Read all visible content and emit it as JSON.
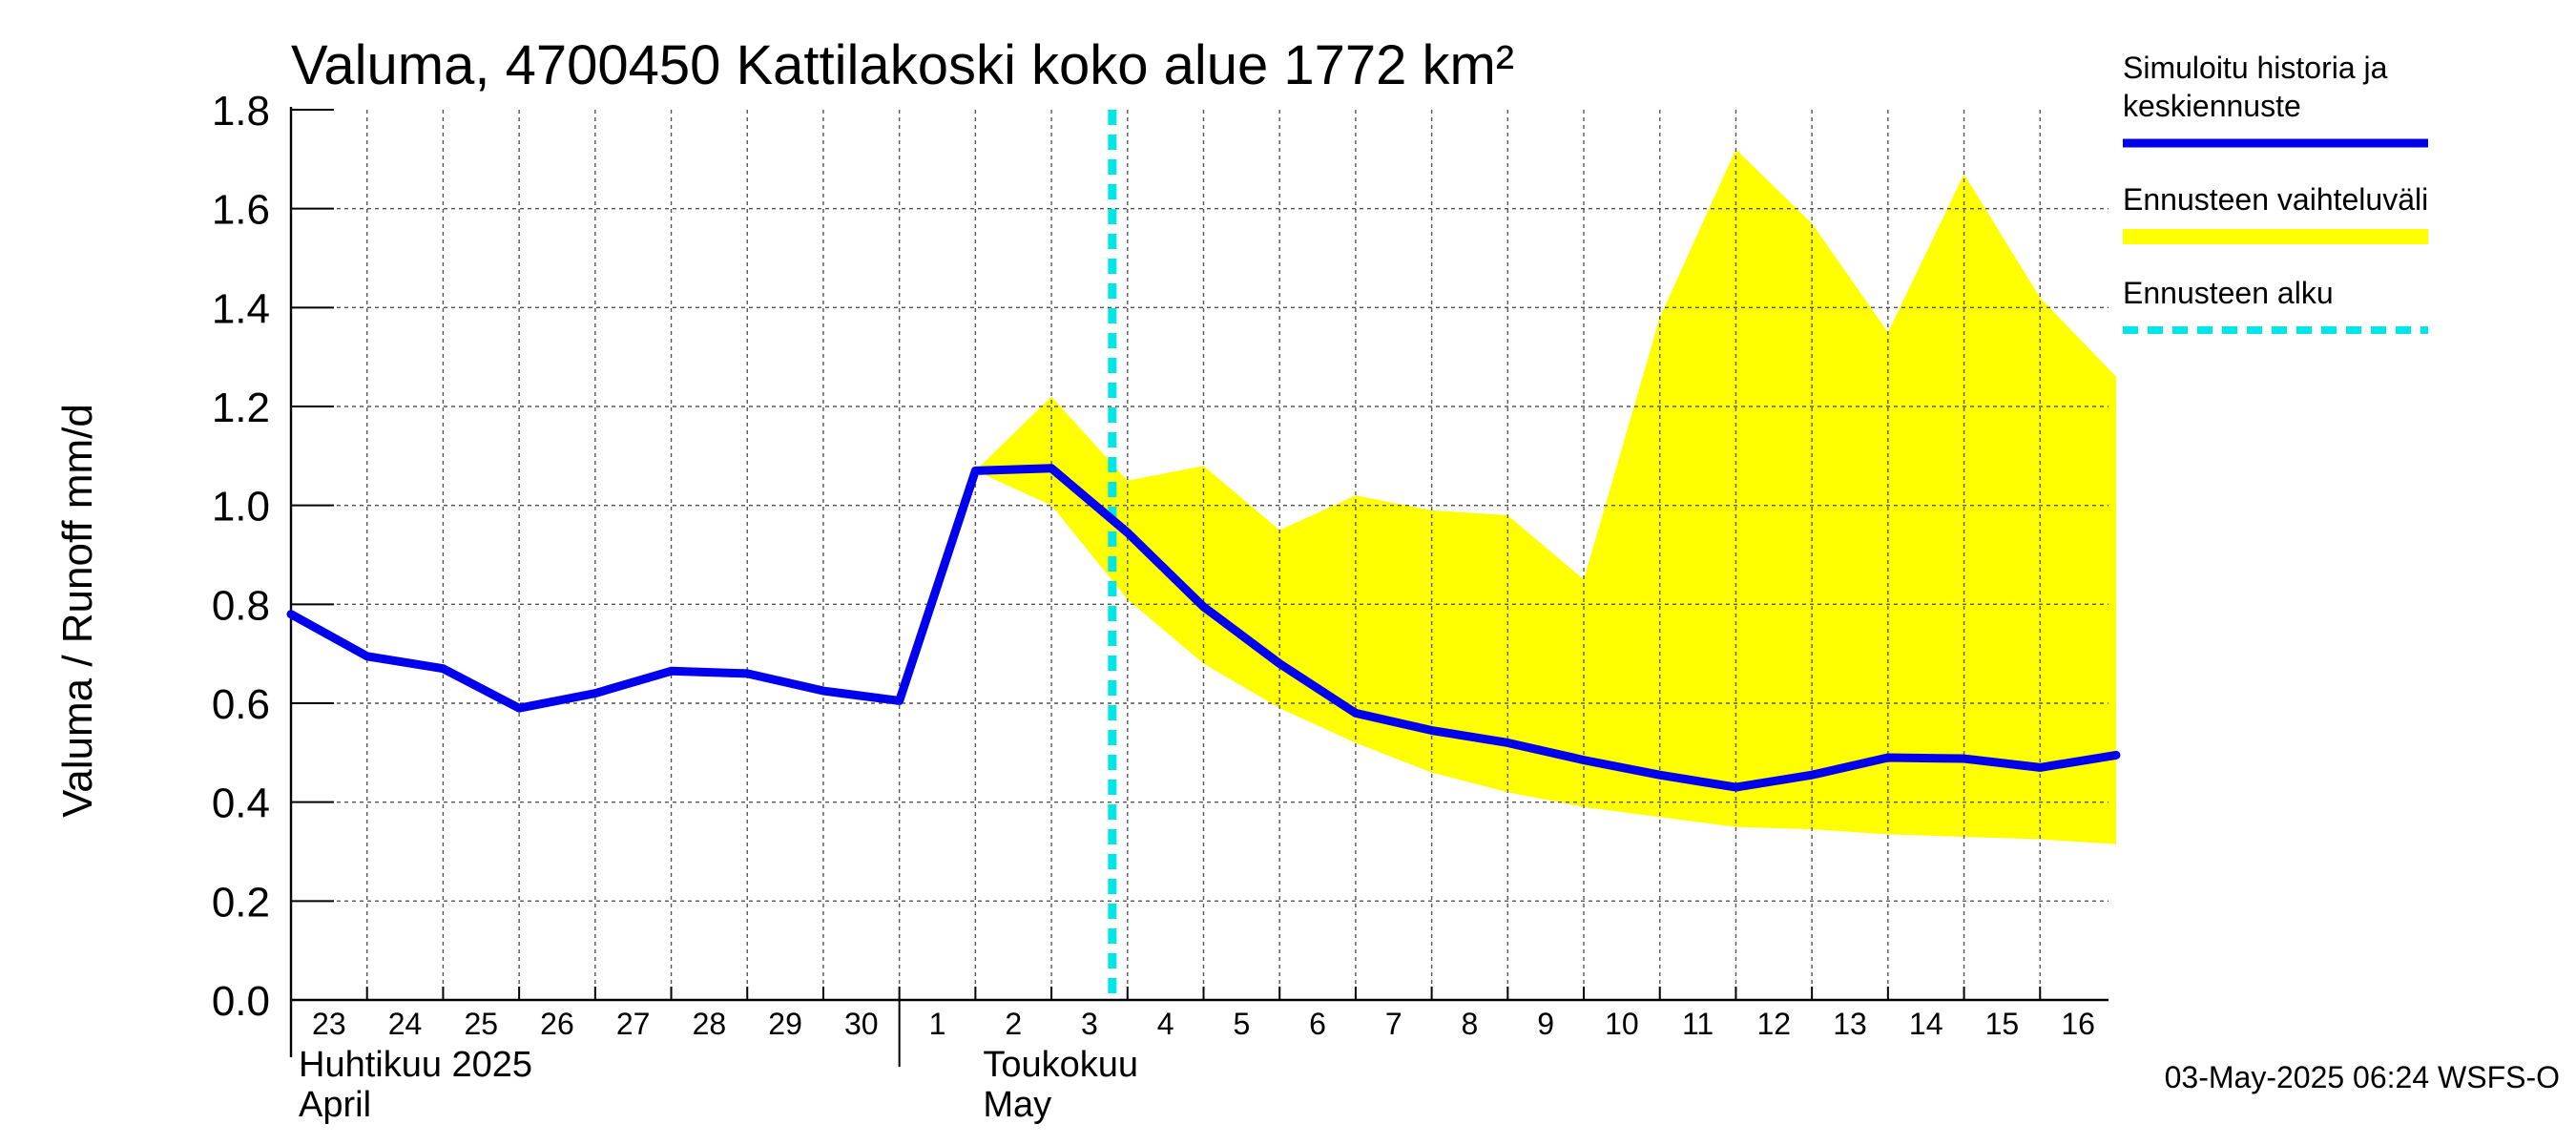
{
  "chart_data": {
    "type": "line",
    "title": "Valuma, 4700450 Kattilakoski koko alue 1772 km²",
    "ylabel": "Valuma / Runoff     mm/d",
    "ylim": [
      0,
      1.8
    ],
    "yticks": [
      "0.0",
      "0.2",
      "0.4",
      "0.6",
      "0.8",
      "1.0",
      "1.2",
      "1.4",
      "1.6",
      "1.8"
    ],
    "xtick_labels": [
      "23",
      "24",
      "25",
      "26",
      "27",
      "28",
      "29",
      "30",
      "1",
      "2",
      "3",
      "4",
      "5",
      "6",
      "7",
      "8",
      "9",
      "10",
      "11",
      "12",
      "13",
      "14",
      "15",
      "16"
    ],
    "month_labels": [
      {
        "line1": "Huhtikuu  2025",
        "line2": "April"
      },
      {
        "line1": "Toukokuu",
        "line2": "May"
      }
    ],
    "forecast_start_day": 10.8,
    "series": [
      {
        "name": "Simuloitu historia ja keskiennuste",
        "color": "#0000ee",
        "x": [
          0,
          1,
          2,
          3,
          4,
          5,
          6,
          7,
          8,
          9,
          10,
          11,
          12,
          13,
          14,
          15,
          16,
          17,
          18,
          19,
          20,
          21,
          22,
          23,
          24
        ],
        "values": [
          0.78,
          0.695,
          0.67,
          0.59,
          0.62,
          0.665,
          0.66,
          0.625,
          0.605,
          1.07,
          1.075,
          0.945,
          0.795,
          0.68,
          0.58,
          0.545,
          0.52,
          0.485,
          0.455,
          0.43,
          0.455,
          0.49,
          0.488,
          0.47,
          0.495
        ]
      }
    ],
    "range": {
      "name": "Ennusteen vaihteluväli",
      "color": "#ffff00",
      "x": [
        9,
        10,
        11,
        12,
        13,
        14,
        15,
        16,
        17,
        18,
        19,
        20,
        21,
        22,
        23,
        24
      ],
      "upper": [
        1.07,
        1.22,
        1.05,
        1.08,
        0.95,
        1.02,
        0.99,
        0.98,
        0.85,
        1.38,
        1.72,
        1.57,
        1.35,
        1.67,
        1.42,
        1.26
      ],
      "lower": [
        1.07,
        1.0,
        0.81,
        0.68,
        0.59,
        0.52,
        0.46,
        0.42,
        0.39,
        0.37,
        0.35,
        0.345,
        0.335,
        0.33,
        0.325,
        0.315
      ]
    },
    "legend": [
      {
        "label_lines": [
          "Simuloitu historia ja",
          "keskiennuste"
        ],
        "color": "#0000ee",
        "style": "solid"
      },
      {
        "label_lines": [
          "Ennusteen vaihteluväli"
        ],
        "color": "#ffff00",
        "style": "band"
      },
      {
        "label_lines": [
          "Ennusteen alku"
        ],
        "color": "#00e5e5",
        "style": "dashed"
      }
    ],
    "grid": true,
    "legend_position": "right"
  },
  "footer": "03-May-2025 06:24 WSFS-O"
}
